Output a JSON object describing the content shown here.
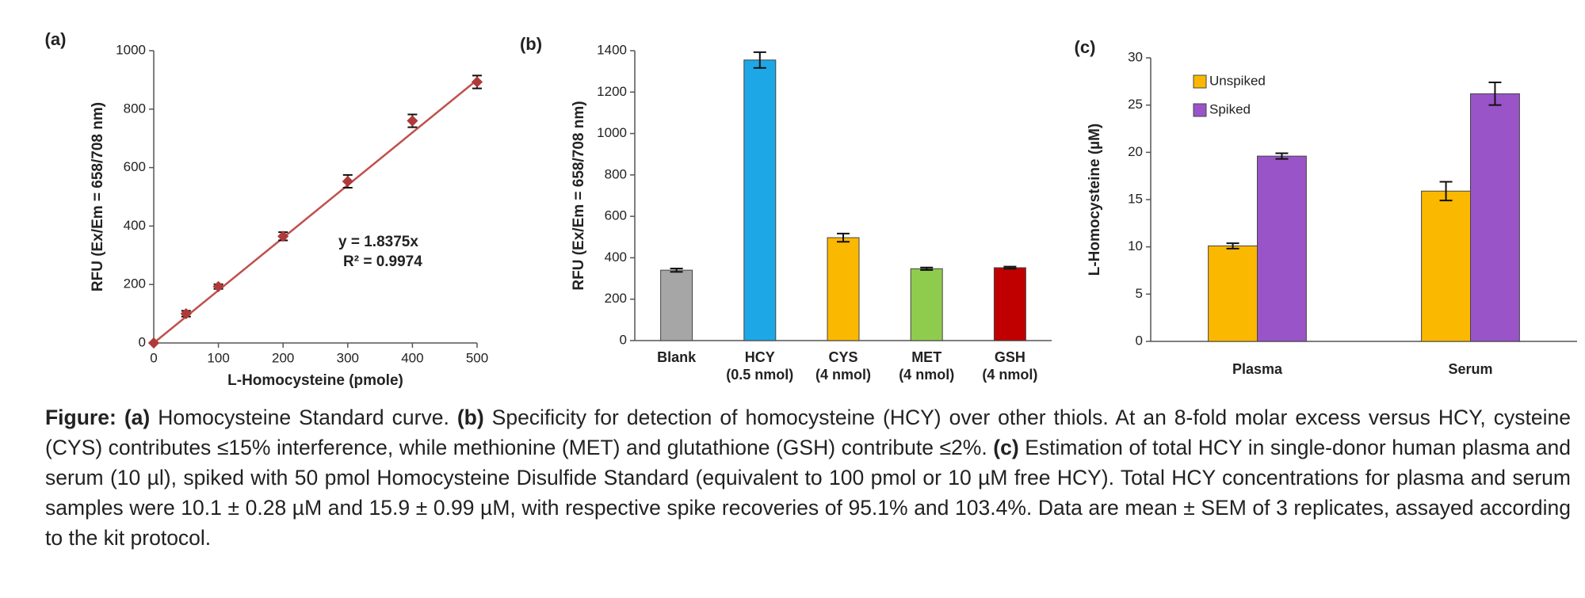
{
  "chart_data": [
    {
      "type": "scatter",
      "panel_label": "(a)",
      "x_label": "L-Homocysteine (pmole)",
      "y_label": "RFU (Ex/Em = 658/708 nm)",
      "x": [
        0,
        50,
        100,
        200,
        300,
        400,
        500
      ],
      "series": [
        {
          "color": "#b03a3a",
          "values": [
            0,
            100,
            193,
            365,
            553,
            760,
            893
          ],
          "errors": [
            0,
            10,
            8,
            14,
            22,
            22,
            22
          ]
        }
      ],
      "trendline": {
        "color": "#c0504d",
        "x": [
          0,
          500
        ],
        "values": [
          0,
          900
        ]
      },
      "annotations": [
        "y = 1.8375x",
        "R² = 0.9974"
      ],
      "xlim": [
        0,
        500
      ],
      "xticks": [
        0,
        100,
        200,
        300,
        400,
        500
      ],
      "ylim": [
        0,
        1000
      ],
      "yticks": [
        0,
        200,
        400,
        600,
        800,
        1000
      ]
    },
    {
      "type": "bar",
      "panel_label": "(b)",
      "y_label": "RFU (Ex/Em = 658/708 nm)",
      "categories": [
        [
          "Blank"
        ],
        [
          "HCY",
          "(0.5 nmol)"
        ],
        [
          "CYS",
          "(4 nmol)"
        ],
        [
          "MET",
          "(4 nmol)"
        ],
        [
          "GSH",
          "(4 nmol)"
        ]
      ],
      "values": [
        340,
        1355,
        497,
        347,
        352
      ],
      "errors": [
        8,
        38,
        20,
        6,
        5
      ],
      "colors": [
        "#a6a6a6",
        "#1ea7e6",
        "#fbb800",
        "#8fcc4e",
        "#c00000"
      ],
      "ylim": [
        0,
        1400
      ],
      "yticks": [
        0,
        200,
        400,
        600,
        800,
        1000,
        1200,
        1400
      ]
    },
    {
      "type": "grouped_bar",
      "panel_label": "(c)",
      "y_label": "L-Homocysteine (µM)",
      "categories": [
        "Plasma",
        "Serum"
      ],
      "series": [
        {
          "name": "Unspiked",
          "color": "#fbb800",
          "values": [
            10.1,
            15.9
          ],
          "errors": [
            0.28,
            0.99
          ]
        },
        {
          "name": "Spiked",
          "color": "#9954c8",
          "values": [
            19.6,
            26.2
          ],
          "errors": [
            0.3,
            1.2
          ]
        }
      ],
      "legend": "upper left",
      "ylim": [
        0,
        30
      ],
      "yticks": [
        0,
        5,
        10,
        15,
        20,
        25,
        30
      ]
    }
  ],
  "caption": [
    {
      "text": "Figure:",
      "bold": true
    },
    {
      "text": " ",
      "bold": false
    },
    {
      "text": "(a)",
      "bold": true
    },
    {
      "text": " Homocysteine Standard curve. ",
      "bold": false
    },
    {
      "text": "(b)",
      "bold": true
    },
    {
      "text": " Specificity for detection of homocysteine (HCY) over other thiols. At an 8-fold molar excess versus HCY, cysteine (CYS) contributes ≤15% interference, while methionine (MET) and glutathione (GSH) contribute ≤2%. ",
      "bold": false
    },
    {
      "text": "(c)",
      "bold": true
    },
    {
      "text": " Estimation of total HCY in single-donor human plasma and serum (10 µl), spiked with 50 pmol Homocysteine Disulfide Standard (equivalent to 100 pmol or 10 µM free HCY). Total HCY concentrations for plasma and serum samples were 10.1 ± 0.28 µM and 15.9 ± 0.99 µM, with respective spike recoveries of 95.1% and 103.4%. Data are mean ± SEM of 3 replicates, assayed according to the kit protocol.",
      "bold": false
    }
  ]
}
